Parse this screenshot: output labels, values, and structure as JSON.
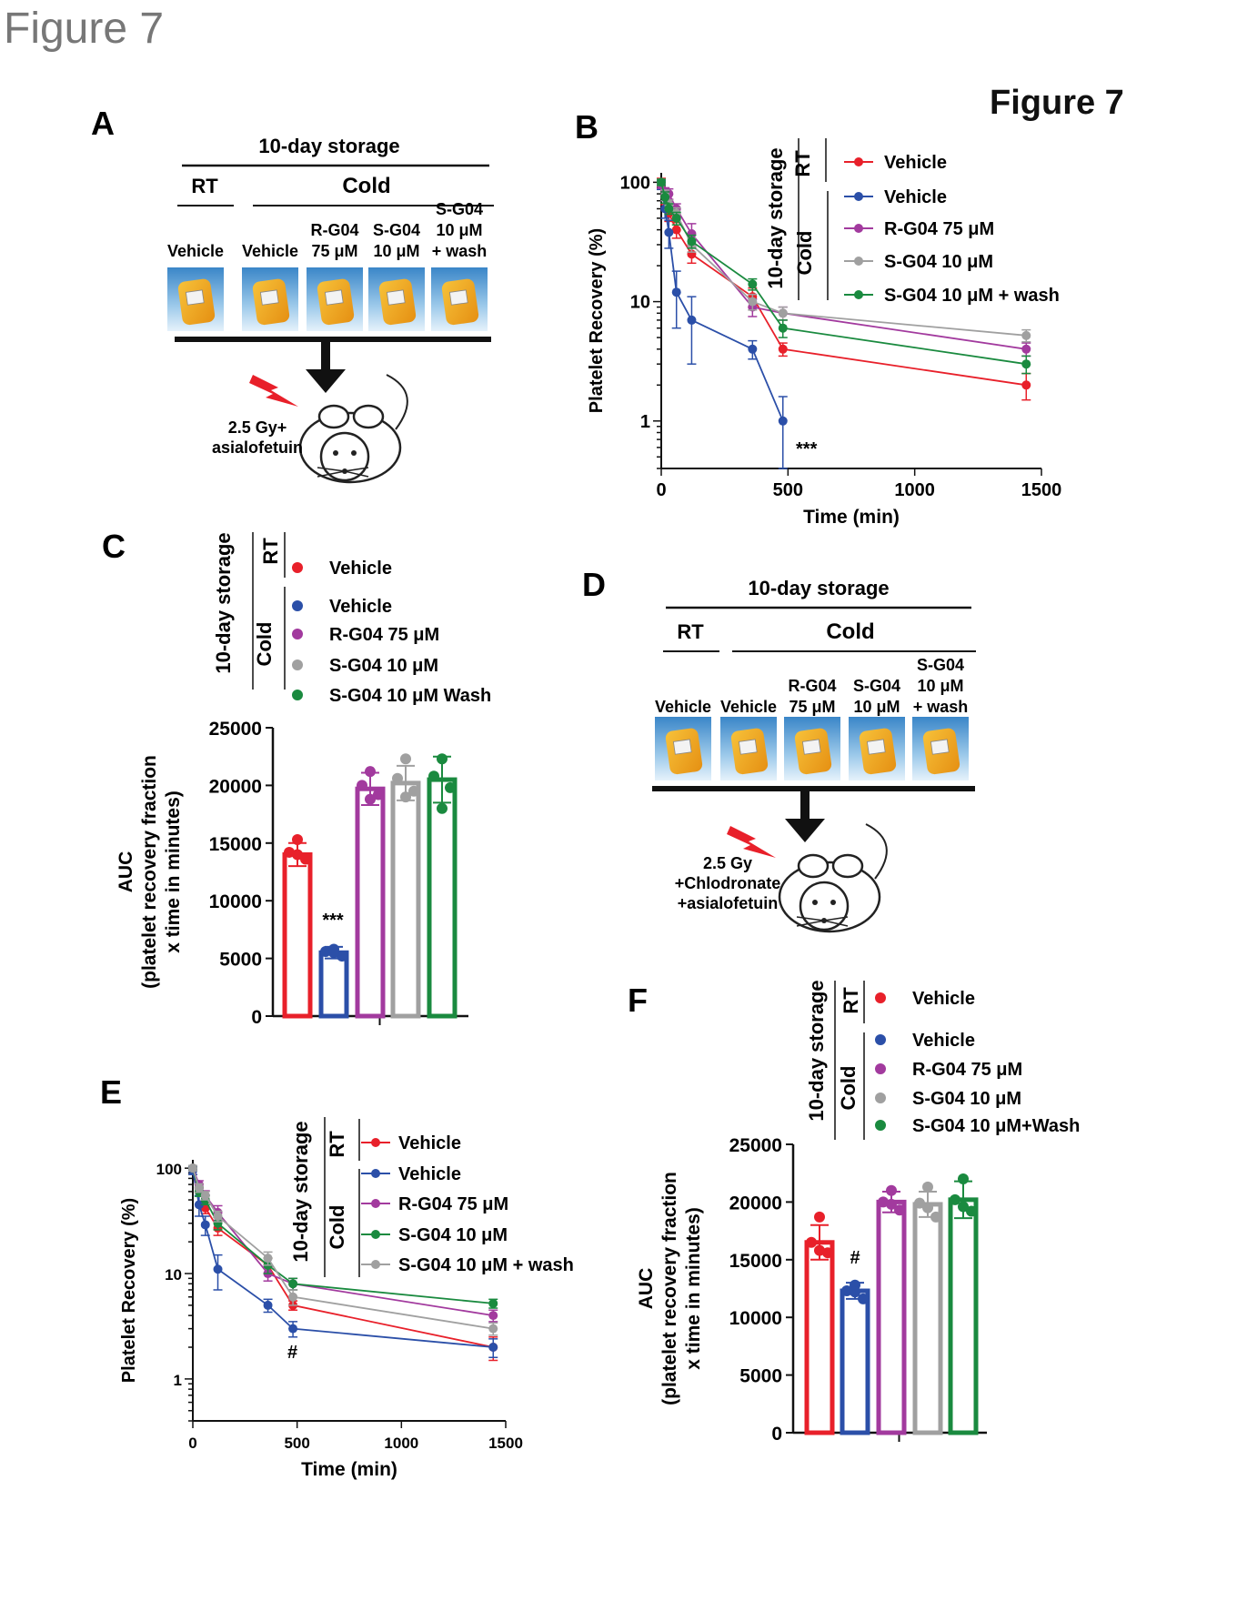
{
  "page_title": "Figure 7",
  "figure_label": "Figure 7",
  "colors": {
    "red": "#e8202a",
    "blue": "#2b4fa8",
    "purple": "#a23a9e",
    "gray": "#a0a0a0",
    "green": "#1a8a3f",
    "flash": "#e8202a"
  },
  "panels": {
    "A": {
      "letter": "A",
      "storage": "10-day storage",
      "rt": "RT",
      "cold": "Cold",
      "bags": [
        {
          "l1": "",
          "l2": "",
          "l3": "Vehicle"
        },
        {
          "l1": "",
          "l2": "",
          "l3": "Vehicle"
        },
        {
          "l1": "",
          "l2": "R-G04",
          "l3": "75 μM"
        },
        {
          "l1": "",
          "l2": "S-G04",
          "l3": "10 μM"
        },
        {
          "l1": "S-G04",
          "l2": "10 μM",
          "l3": "+ wash"
        }
      ],
      "mouse_l1": "2.5 Gy+",
      "mouse_l2": "asialofetuin"
    },
    "D": {
      "letter": "D",
      "storage": "10-day storage",
      "rt": "RT",
      "cold": "Cold",
      "bags": [
        {
          "l1": "",
          "l2": "",
          "l3": "Vehicle"
        },
        {
          "l1": "",
          "l2": "",
          "l3": "Vehicle"
        },
        {
          "l1": "",
          "l2": "R-G04",
          "l3": "75 μM"
        },
        {
          "l1": "",
          "l2": "S-G04",
          "l3": "10 μM"
        },
        {
          "l1": "S-G04",
          "l2": "10 μM",
          "l3": "+ wash"
        }
      ],
      "mouse_l1": "2.5 Gy",
      "mouse_l2": "+Chlodronate",
      "mouse_l3": "+asialofetuin"
    },
    "B": {
      "letter": "B",
      "legend_storage": "10-day storage",
      "legend_rt": "RT",
      "legend_cold": "Cold",
      "annotation": "***"
    },
    "C": {
      "letter": "C",
      "legend_storage": "10-day storage",
      "legend_rt": "RT",
      "legend_cold": "Cold",
      "annotation": "***",
      "ylabel_lines": [
        "AUC",
        "(platelet recovery fraction",
        "x time in minutes)"
      ]
    },
    "E": {
      "letter": "E",
      "legend_storage": "10-day storage",
      "legend_rt": "RT",
      "legend_cold": "Cold",
      "annotation": "#"
    },
    "F": {
      "letter": "F",
      "legend_storage": "10-day storage",
      "legend_rt": "RT",
      "legend_cold": "Cold",
      "annotation": "#",
      "ylabel_lines": [
        "AUC",
        "(platelet recovery fraction",
        "x time in minutes)"
      ]
    }
  },
  "chart_data": [
    {
      "id": "B",
      "type": "line",
      "xlabel": "Time (min)",
      "ylabel": "Platelet Recovery (%)",
      "xlim": [
        0,
        1500
      ],
      "ylim": [
        0.4,
        120
      ],
      "log_y": true,
      "xticks": [
        0,
        500,
        1000,
        1500
      ],
      "yticks": [
        {
          "v": 1,
          "label": "1"
        },
        {
          "v": 10,
          "label": "10"
        },
        {
          "v": 100,
          "label": "100"
        }
      ],
      "series": [
        {
          "name": "Vehicle",
          "color": "red",
          "x": [
            0,
            15,
            30,
            60,
            120,
            360,
            480,
            1440
          ],
          "y": [
            100,
            75,
            55,
            40,
            25,
            11,
            4,
            2
          ],
          "err": [
            8,
            10,
            8,
            6,
            4,
            2,
            0.5,
            0.5
          ]
        },
        {
          "name": "Vehicle",
          "color": "blue",
          "x": [
            0,
            15,
            30,
            60,
            120,
            360,
            480
          ],
          "y": [
            95,
            60,
            38,
            12,
            7,
            4,
            1
          ],
          "err": [
            8,
            10,
            10,
            6,
            4,
            0.7,
            0.6
          ]
        },
        {
          "name": "R-G04 75 μM",
          "color": "purple",
          "x": [
            0,
            15,
            30,
            60,
            120,
            360,
            480,
            1440
          ],
          "y": [
            95,
            82,
            80,
            60,
            37,
            9,
            8,
            4
          ],
          "err": [
            6,
            8,
            8,
            6,
            8,
            1.5,
            1,
            0.5
          ]
        },
        {
          "name": "S-G04 10 μM",
          "color": "gray",
          "x": [
            0,
            15,
            30,
            60,
            120,
            360,
            480,
            1440
          ],
          "y": [
            100,
            78,
            65,
            55,
            30,
            10,
            8,
            5.2
          ],
          "err": [
            6,
            8,
            6,
            6,
            4,
            1.5,
            1,
            0.6
          ]
        },
        {
          "name": "S-G04 10 μM + wash",
          "color": "green",
          "x": [
            0,
            15,
            30,
            60,
            120,
            360,
            480,
            1440
          ],
          "y": [
            100,
            75,
            60,
            50,
            32,
            14,
            6,
            3
          ],
          "err": [
            6,
            8,
            6,
            6,
            4,
            1.5,
            1,
            0.5
          ]
        }
      ]
    },
    {
      "id": "C",
      "type": "bar",
      "categories": [
        "Vehicle",
        "Vehicle",
        "R-G04 75 μM",
        "S-G04 10 μM",
        "S-G04 10 μM Wash"
      ],
      "colors": [
        "red",
        "blue",
        "purple",
        "gray",
        "green"
      ],
      "values": [
        14000,
        5500,
        19700,
        20200,
        20500
      ],
      "errors": [
        1000,
        500,
        1400,
        1500,
        2000
      ],
      "points": [
        [
          15300,
          14200,
          13600,
          14000
        ],
        [
          5800,
          5600,
          5200,
          5500
        ],
        [
          21200,
          20000,
          19200,
          18800
        ],
        [
          22300,
          20600,
          19500,
          19000
        ],
        [
          22300,
          20800,
          19800,
          18000
        ]
      ],
      "ylim": [
        0,
        25000
      ],
      "yticks": [
        0,
        5000,
        10000,
        15000,
        20000,
        25000
      ]
    },
    {
      "id": "E",
      "type": "line",
      "xlabel": "Time (min)",
      "ylabel": "Platelet Recovery (%)",
      "xlim": [
        0,
        1500
      ],
      "ylim": [
        0.4,
        120
      ],
      "log_y": true,
      "xticks": [
        0,
        500,
        1000,
        1500
      ],
      "yticks": [
        {
          "v": 1,
          "label": "1"
        },
        {
          "v": 10,
          "label": "10"
        },
        {
          "v": 100,
          "label": "100"
        }
      ],
      "series": [
        {
          "name": "Vehicle",
          "color": "red",
          "x": [
            0,
            30,
            60,
            120,
            360,
            480,
            1440
          ],
          "y": [
            100,
            65,
            42,
            27,
            12,
            5,
            2
          ],
          "err": [
            6,
            6,
            5,
            4,
            2,
            0.5,
            0.5
          ]
        },
        {
          "name": "Vehicle",
          "color": "blue",
          "x": [
            0,
            30,
            60,
            120,
            360,
            480,
            1440
          ],
          "y": [
            95,
            45,
            29,
            11,
            5,
            3,
            2
          ],
          "err": [
            8,
            10,
            6,
            4,
            0.7,
            0.5,
            0.4
          ]
        },
        {
          "name": "R-G04 75 μM",
          "color": "purple",
          "x": [
            0,
            30,
            60,
            120,
            360,
            480,
            1440
          ],
          "y": [
            100,
            70,
            55,
            38,
            10,
            8,
            4
          ],
          "err": [
            6,
            6,
            6,
            6,
            1.5,
            1,
            0.5
          ]
        },
        {
          "name": "S-G04 10 μM",
          "color": "green",
          "x": [
            0,
            30,
            60,
            120,
            360,
            480,
            1440
          ],
          "y": [
            100,
            60,
            50,
            30,
            12,
            8,
            5.2
          ],
          "err": [
            6,
            6,
            5,
            4,
            2,
            1,
            0.5
          ]
        },
        {
          "name": "S-G04 10 μM + wash",
          "color": "gray",
          "x": [
            0,
            30,
            60,
            120,
            360,
            480,
            1440
          ],
          "y": [
            100,
            65,
            55,
            35,
            14,
            6,
            3
          ],
          "err": [
            6,
            6,
            5,
            4,
            2,
            1,
            0.4
          ]
        }
      ]
    },
    {
      "id": "F",
      "type": "bar",
      "categories": [
        "Vehicle",
        "Vehicle",
        "R-G04 75 μM",
        "S-G04 10 μM",
        "S-G04 10 μM+Wash"
      ],
      "colors": [
        "red",
        "blue",
        "purple",
        "gray",
        "green"
      ],
      "values": [
        16500,
        12300,
        20000,
        19800,
        20200
      ],
      "errors": [
        1500,
        700,
        900,
        1100,
        1600
      ],
      "points": [
        [
          18700,
          16500,
          15600,
          15800
        ],
        [
          12800,
          12300,
          11600,
          12200
        ],
        [
          21000,
          20000,
          19300,
          19800
        ],
        [
          21300,
          19900,
          18700,
          19500
        ],
        [
          22000,
          20200,
          19200,
          19600
        ]
      ],
      "ylim": [
        0,
        25000
      ],
      "yticks": [
        0,
        5000,
        10000,
        15000,
        20000,
        25000
      ]
    }
  ]
}
